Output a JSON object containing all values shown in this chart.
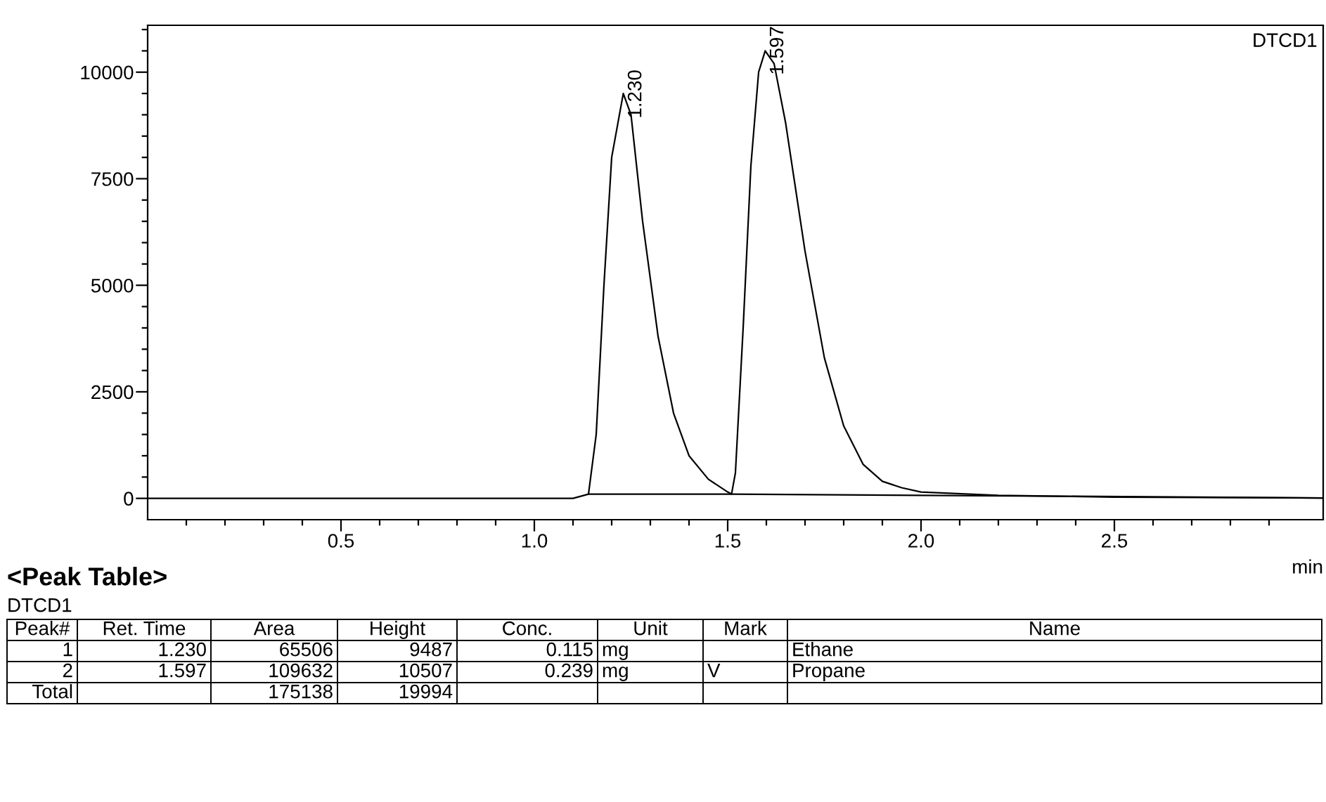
{
  "chart_data": {
    "type": "line",
    "xlabel": "min",
    "xlim": [
      0,
      3.04
    ],
    "ylim": [
      -500,
      11100
    ],
    "xticks": [
      {
        "value": 0.1,
        "label": null
      },
      {
        "value": 0.2,
        "label": null
      },
      {
        "value": 0.3,
        "label": null
      },
      {
        "value": 0.4,
        "label": null
      },
      0.5,
      {
        "value": 0.6,
        "label": null
      },
      {
        "value": 0.7,
        "label": null
      },
      {
        "value": 0.8,
        "label": null
      },
      {
        "value": 0.9,
        "label": null
      },
      {
        "value": 1.0,
        "label": "1.0"
      },
      {
        "value": 1.1,
        "label": null
      },
      {
        "value": 1.2,
        "label": null
      },
      {
        "value": 1.3,
        "label": null
      },
      {
        "value": 1.4,
        "label": null
      },
      1.5,
      {
        "value": 1.6,
        "label": null
      },
      {
        "value": 1.7,
        "label": null
      },
      {
        "value": 1.8,
        "label": null
      },
      {
        "value": 1.9,
        "label": null
      },
      {
        "value": 2.0,
        "label": "2.0"
      },
      {
        "value": 2.1,
        "label": null
      },
      {
        "value": 2.2,
        "label": null
      },
      {
        "value": 2.3,
        "label": null
      },
      {
        "value": 2.4,
        "label": null
      },
      2.5,
      {
        "value": 2.6,
        "label": null
      },
      {
        "value": 2.7,
        "label": null
      },
      {
        "value": 2.8,
        "label": null
      },
      {
        "value": 2.9,
        "label": null
      }
    ],
    "yticks": [
      0,
      {
        "value": 500,
        "label": null
      },
      {
        "value": 1000,
        "label": null
      },
      {
        "value": 1500,
        "label": null
      },
      {
        "value": 2000,
        "label": null
      },
      2500,
      {
        "value": 3000,
        "label": null
      },
      {
        "value": 3500,
        "label": null
      },
      {
        "value": 4000,
        "label": null
      },
      {
        "value": 4500,
        "label": null
      },
      5000,
      {
        "value": 5500,
        "label": null
      },
      {
        "value": 6000,
        "label": null
      },
      {
        "value": 6500,
        "label": null
      },
      {
        "value": 7000,
        "label": null
      },
      7500,
      {
        "value": 8000,
        "label": null
      },
      {
        "value": 8500,
        "label": null
      },
      {
        "value": 9000,
        "label": null
      },
      {
        "value": 9500,
        "label": null
      },
      10000,
      {
        "value": 10500,
        "label": null
      },
      {
        "value": 11000,
        "label": null
      }
    ],
    "grid": false,
    "legend": false,
    "series": [
      {
        "color": "#000000",
        "x": [
          0,
          1.1,
          1.14,
          1.16,
          1.18,
          1.2,
          1.23,
          1.25,
          1.28,
          1.32,
          1.36,
          1.4,
          1.45,
          1.5,
          1.51,
          1.52,
          1.54,
          1.56,
          1.58,
          1.597,
          1.62,
          1.65,
          1.7,
          1.75,
          1.8,
          1.85,
          1.9,
          1.95,
          2.0,
          2.2,
          2.5,
          3.04
        ],
        "values": [
          0,
          0,
          100,
          1500,
          5000,
          8000,
          9500,
          9000,
          6500,
          3800,
          2000,
          1000,
          450,
          150,
          100,
          600,
          4000,
          7800,
          10000,
          10500,
          10200,
          8800,
          5800,
          3300,
          1700,
          800,
          400,
          250,
          150,
          70,
          30,
          10
        ]
      },
      {
        "color": "#000000",
        "x": [
          1.14,
          1.51,
          3.04
        ],
        "values": [
          100,
          100,
          10
        ]
      }
    ],
    "annotations": [
      {
        "text": "1.230",
        "x": 1.23,
        "y": 9487
      },
      {
        "text": "1.597",
        "x": 1.597,
        "y": 10507
      },
      "DTCD1",
      "<Peak Table>",
      "DTCD1",
      "Peak#",
      "Ret. Time",
      "Area",
      "Height",
      "Conc.",
      "Unit",
      "Mark",
      "Name",
      "1",
      "1.230",
      "65506",
      "9487",
      "0.115",
      "mg",
      null,
      "Ethane",
      "2",
      "1.597",
      "109632",
      "10507",
      "0.239",
      "mg",
      "V",
      "Propane",
      "Total",
      null,
      "175138",
      "19994",
      null,
      null,
      null,
      null
    ]
  }
}
